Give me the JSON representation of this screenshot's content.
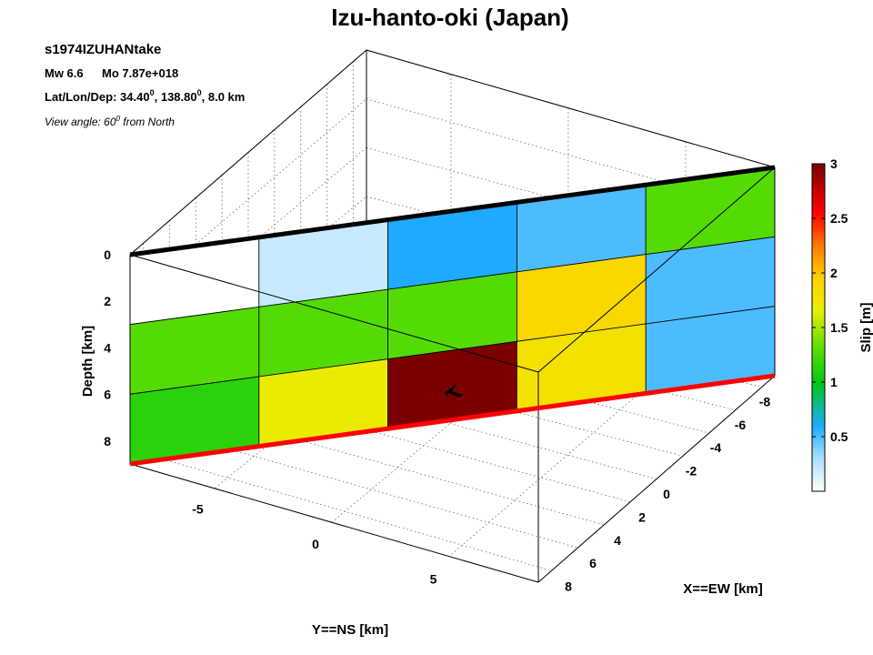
{
  "chart_data": {
    "type": "heatmap",
    "title": "Izu-hanto-oki (Japan)",
    "event_id": "s1974IZUHANtake",
    "magnitude_label": "Mw 6.6",
    "moment_label": "Mo 7.87e+018",
    "location_prefix": "Lat/Lon/Dep: ",
    "lat": "34.40",
    "lon": "138.80",
    "location_suffix": ", 8.0 km",
    "degree_symbol": "0",
    "view_prefix": "View angle:  60",
    "view_suffix": " from North",
    "xlabel": "Y==NS [km]",
    "ylabel": "X==EW [km]",
    "zlabel": "Depth [km]",
    "colorbar_label": "Slip [m]",
    "colorbar_range": [
      0,
      3
    ],
    "colorbar_ticks": [
      "0.5",
      "1",
      "1.5",
      "2",
      "2.5",
      "3"
    ],
    "colorbar_tick_values": [
      0.5,
      1,
      1.5,
      2,
      2.5,
      3
    ],
    "ns_ticks": [
      "-5",
      "0",
      "5"
    ],
    "ns_tick_values": [
      -5,
      0,
      5
    ],
    "ew_ticks": [
      "-8",
      "-6",
      "-4",
      "-2",
      "0",
      "2",
      "4",
      "6",
      "8"
    ],
    "ew_tick_values": [
      -8,
      -6,
      -4,
      -2,
      0,
      2,
      4,
      6,
      8
    ],
    "depth_ticks": [
      "0",
      "2",
      "4",
      "6",
      "8"
    ],
    "depth_tick_values": [
      0,
      2,
      4,
      6,
      8
    ],
    "slip_grid": [
      [
        0.0,
        0.2,
        0.6,
        0.5,
        1.2
      ],
      [
        1.2,
        1.2,
        1.2,
        1.9,
        0.5
      ],
      [
        1.1,
        1.7,
        3.0,
        1.8,
        0.5
      ]
    ],
    "hypocenter_marker": "black arrow",
    "top_edge_color": "#000000",
    "bottom_edge_color": "#ff0000"
  }
}
